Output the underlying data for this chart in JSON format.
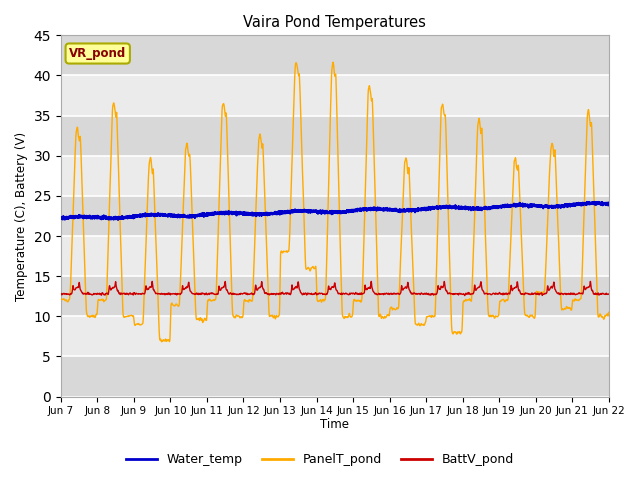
{
  "title": "Vaira Pond Temperatures",
  "xlabel": "Time",
  "ylabel": "Temperature (C), Battery (V)",
  "xlim_days": [
    7,
    22
  ],
  "ylim": [
    0,
    45
  ],
  "yticks": [
    0,
    5,
    10,
    15,
    20,
    25,
    30,
    35,
    40,
    45
  ],
  "background_color": "#ffffff",
  "plot_bg_light": "#ebebeb",
  "plot_bg_dark": "#d8d8d8",
  "grid_color": "#ffffff",
  "water_temp_color": "#0000cc",
  "panel_temp_color": "#ffaa00",
  "batt_color": "#cc0000",
  "annotation_text": "VR_pond",
  "annotation_bg": "#ffff99",
  "annotation_border": "#aaaa00",
  "legend_labels": [
    "Water_temp",
    "PanelT_pond",
    "BattV_pond"
  ],
  "figsize": [
    6.4,
    4.8
  ],
  "dpi": 100
}
